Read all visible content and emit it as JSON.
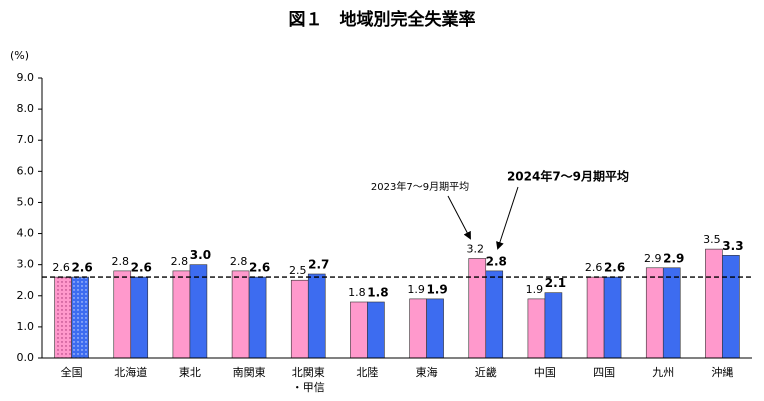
{
  "chart_data": {
    "type": "bar",
    "title": "図１　地域別完全失業率",
    "y_label": "(%)",
    "categories": [
      "全国",
      "北海道",
      "東北",
      "南関東",
      "北関東\n・甲信",
      "北陸",
      "東海",
      "近畿",
      "中国",
      "四国",
      "九州",
      "沖縄"
    ],
    "series": [
      {
        "name": "2023年7～9月期平均",
        "color": "#ff99cc",
        "values": [
          2.6,
          2.8,
          2.8,
          2.8,
          2.5,
          1.8,
          1.9,
          3.2,
          1.9,
          2.6,
          2.9,
          3.5
        ],
        "value_labels": [
          "2.6",
          "2.8",
          "2.8",
          "2.8",
          "2.5",
          "1.8",
          "1.9",
          "3.2",
          "1.9",
          "2.6",
          "2.9",
          "3.5"
        ]
      },
      {
        "name": "2024年7～9月期平均",
        "color": "#3d6cf0",
        "values": [
          2.6,
          2.6,
          3.0,
          2.6,
          2.7,
          1.8,
          1.9,
          2.8,
          2.1,
          2.6,
          2.9,
          3.3
        ],
        "value_labels": [
          "2.6",
          "2.6",
          "3.0",
          "2.6",
          "2.7",
          "1.8",
          "1.9",
          "2.8",
          "2.1",
          "2.6",
          "2.9",
          "3.3"
        ]
      }
    ],
    "reference_line": 2.6,
    "ylim": [
      0,
      9
    ],
    "yticks": [
      {
        "value": 0,
        "label": "0.0"
      },
      {
        "value": 1,
        "label": "1.0"
      },
      {
        "value": 2,
        "label": "2.0"
      },
      {
        "value": 3,
        "label": "3.0"
      },
      {
        "value": 4,
        "label": "4.0"
      },
      {
        "value": 5,
        "label": "5.0"
      },
      {
        "value": 6,
        "label": "6.0"
      },
      {
        "value": 7,
        "label": "7.0"
      },
      {
        "value": 8,
        "label": "8.0"
      },
      {
        "value": 9,
        "label": "9.0"
      }
    ],
    "grid": false
  }
}
